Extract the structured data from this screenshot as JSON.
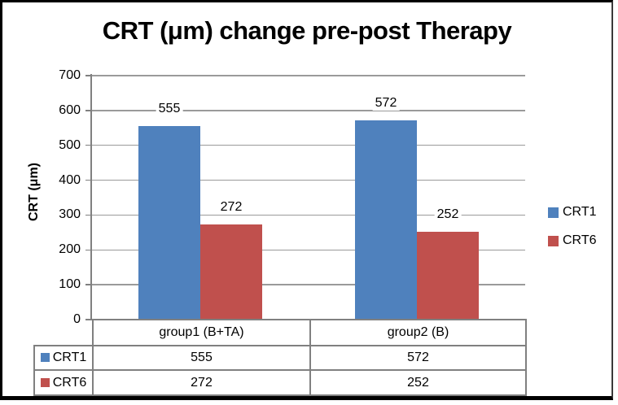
{
  "chart_data": {
    "type": "bar",
    "title": "CRT (μm) change pre-post Therapy",
    "xlabel": "",
    "ylabel": "CRT (μm)",
    "ylim": [
      0,
      700
    ],
    "yticks": [
      0,
      100,
      200,
      300,
      400,
      500,
      600,
      700
    ],
    "categories": [
      "group1 (B+TA)",
      "group2 (B)"
    ],
    "series": [
      {
        "name": "CRT1",
        "color": "#4F81BD",
        "values": [
          555,
          572
        ]
      },
      {
        "name": "CRT6",
        "color": "#C0504D",
        "values": [
          272,
          252
        ]
      }
    ],
    "legend_position": "right",
    "grid": true,
    "data_labels": true,
    "data_table": true
  },
  "styles": {
    "gridline_color": "#9a9a9a",
    "axis_color": "#808080",
    "table_border_color": "#808080",
    "frame_border_color": "#000000",
    "background": "#ffffff",
    "text_color": "#000000"
  }
}
